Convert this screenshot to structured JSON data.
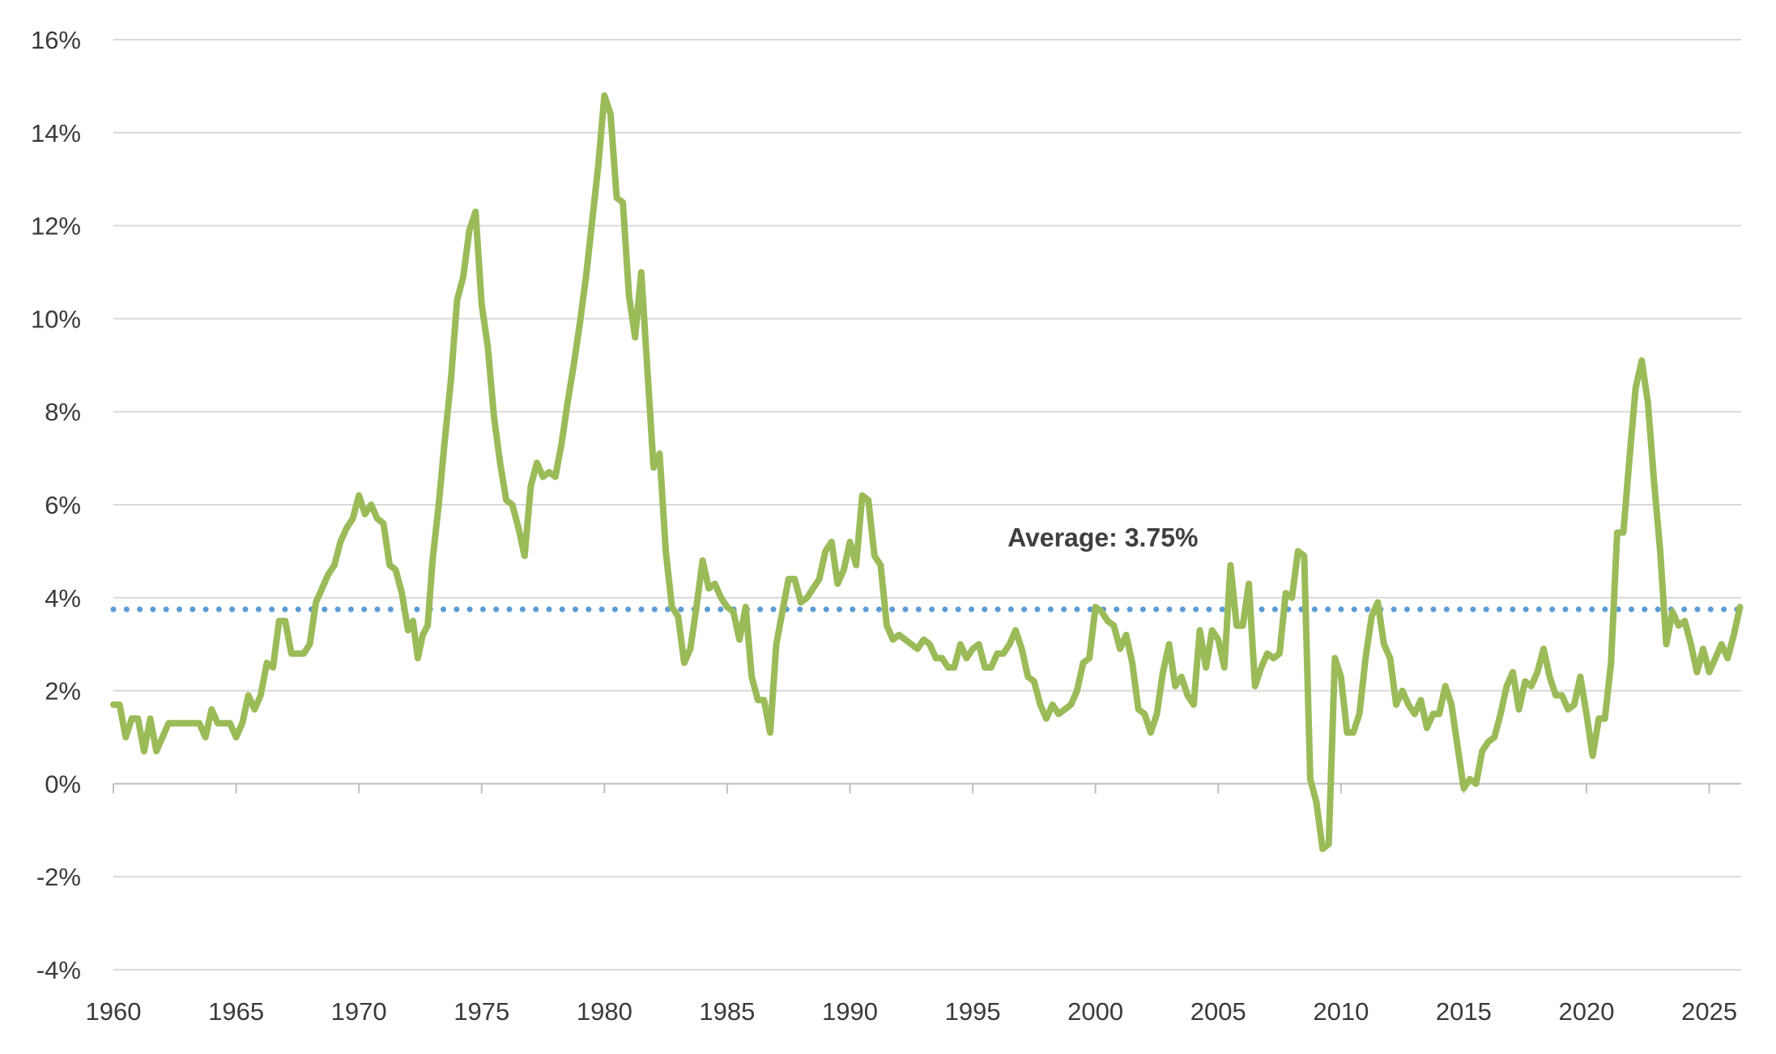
{
  "chart_data": {
    "type": "line",
    "title": "",
    "xlabel": "",
    "ylabel": "",
    "xlim": [
      1960,
      2026.3
    ],
    "ylim": [
      -4,
      16
    ],
    "grid": true,
    "x_ticks": [
      1960,
      1965,
      1970,
      1975,
      1980,
      1985,
      1990,
      1995,
      2000,
      2005,
      2010,
      2015,
      2020,
      2025
    ],
    "x_tick_labels": [
      "1960",
      "1965",
      "1970",
      "1975",
      "1980",
      "1985",
      "1990",
      "1995",
      "2000",
      "2005",
      "2010",
      "2015",
      "2020",
      "2025"
    ],
    "y_ticks": [
      -4,
      -2,
      0,
      2,
      4,
      6,
      8,
      10,
      12,
      14,
      16
    ],
    "y_tick_labels": [
      "-4%",
      "-2%",
      "0%",
      "2%",
      "4%",
      "6%",
      "8%",
      "10%",
      "12%",
      "14%",
      "16%"
    ],
    "series": [
      {
        "color": "#9bbb59",
        "points": [
          [
            1960.0,
            1.7
          ],
          [
            1960.25,
            1.7
          ],
          [
            1960.5,
            1.0
          ],
          [
            1960.75,
            1.4
          ],
          [
            1961.0,
            1.4
          ],
          [
            1961.25,
            0.7
          ],
          [
            1961.5,
            1.4
          ],
          [
            1961.75,
            0.7
          ],
          [
            1962.0,
            1.0
          ],
          [
            1962.25,
            1.3
          ],
          [
            1962.5,
            1.3
          ],
          [
            1963.0,
            1.3
          ],
          [
            1963.5,
            1.3
          ],
          [
            1963.75,
            1.0
          ],
          [
            1964.0,
            1.6
          ],
          [
            1964.25,
            1.3
          ],
          [
            1964.75,
            1.3
          ],
          [
            1965.0,
            1.0
          ],
          [
            1965.25,
            1.3
          ],
          [
            1965.5,
            1.9
          ],
          [
            1965.75,
            1.6
          ],
          [
            1966.0,
            1.9
          ],
          [
            1966.25,
            2.6
          ],
          [
            1966.5,
            2.5
          ],
          [
            1966.75,
            3.5
          ],
          [
            1967.0,
            3.5
          ],
          [
            1967.25,
            2.8
          ],
          [
            1967.75,
            2.8
          ],
          [
            1968.0,
            3.0
          ],
          [
            1968.25,
            3.9
          ],
          [
            1968.5,
            4.2
          ],
          [
            1968.75,
            4.5
          ],
          [
            1969.0,
            4.7
          ],
          [
            1969.25,
            5.2
          ],
          [
            1969.5,
            5.5
          ],
          [
            1969.75,
            5.7
          ],
          [
            1970.0,
            6.2
          ],
          [
            1970.25,
            5.8
          ],
          [
            1970.5,
            6.0
          ],
          [
            1970.75,
            5.7
          ],
          [
            1971.0,
            5.6
          ],
          [
            1971.25,
            4.7
          ],
          [
            1971.5,
            4.6
          ],
          [
            1971.75,
            4.1
          ],
          [
            1972.0,
            3.3
          ],
          [
            1972.2,
            3.5
          ],
          [
            1972.4,
            2.7
          ],
          [
            1972.6,
            3.2
          ],
          [
            1972.8,
            3.4
          ],
          [
            1973.0,
            4.8
          ],
          [
            1973.25,
            6.0
          ],
          [
            1973.5,
            7.4
          ],
          [
            1973.75,
            8.7
          ],
          [
            1974.0,
            10.4
          ],
          [
            1974.25,
            10.9
          ],
          [
            1974.5,
            11.9
          ],
          [
            1974.75,
            12.3
          ],
          [
            1975.0,
            10.3
          ],
          [
            1975.25,
            9.4
          ],
          [
            1975.5,
            7.9
          ],
          [
            1975.75,
            6.9
          ],
          [
            1976.0,
            6.1
          ],
          [
            1976.25,
            6.0
          ],
          [
            1976.5,
            5.5
          ],
          [
            1976.75,
            4.9
          ],
          [
            1977.0,
            6.4
          ],
          [
            1977.25,
            6.9
          ],
          [
            1977.5,
            6.6
          ],
          [
            1977.75,
            6.7
          ],
          [
            1978.0,
            6.6
          ],
          [
            1978.25,
            7.3
          ],
          [
            1978.5,
            8.2
          ],
          [
            1978.75,
            9.0
          ],
          [
            1979.0,
            9.9
          ],
          [
            1979.25,
            10.9
          ],
          [
            1979.5,
            12.1
          ],
          [
            1979.75,
            13.3
          ],
          [
            1980.0,
            14.8
          ],
          [
            1980.25,
            14.4
          ],
          [
            1980.5,
            12.6
          ],
          [
            1980.75,
            12.5
          ],
          [
            1981.0,
            10.5
          ],
          [
            1981.25,
            9.6
          ],
          [
            1981.5,
            11.0
          ],
          [
            1981.75,
            8.9
          ],
          [
            1982.0,
            6.8
          ],
          [
            1982.25,
            7.1
          ],
          [
            1982.5,
            5.0
          ],
          [
            1982.75,
            3.8
          ],
          [
            1983.0,
            3.6
          ],
          [
            1983.25,
            2.6
          ],
          [
            1983.5,
            2.9
          ],
          [
            1983.75,
            3.8
          ],
          [
            1984.0,
            4.8
          ],
          [
            1984.25,
            4.2
          ],
          [
            1984.5,
            4.3
          ],
          [
            1984.75,
            4.0
          ],
          [
            1985.0,
            3.8
          ],
          [
            1985.25,
            3.7
          ],
          [
            1985.5,
            3.1
          ],
          [
            1985.75,
            3.8
          ],
          [
            1986.0,
            2.3
          ],
          [
            1986.25,
            1.8
          ],
          [
            1986.5,
            1.8
          ],
          [
            1986.75,
            1.1
          ],
          [
            1987.0,
            3.0
          ],
          [
            1987.25,
            3.7
          ],
          [
            1987.5,
            4.4
          ],
          [
            1987.75,
            4.4
          ],
          [
            1988.0,
            3.9
          ],
          [
            1988.25,
            4.0
          ],
          [
            1988.5,
            4.2
          ],
          [
            1988.75,
            4.4
          ],
          [
            1989.0,
            5.0
          ],
          [
            1989.25,
            5.2
          ],
          [
            1989.5,
            4.3
          ],
          [
            1989.75,
            4.6
          ],
          [
            1990.0,
            5.2
          ],
          [
            1990.25,
            4.7
          ],
          [
            1990.5,
            6.2
          ],
          [
            1990.75,
            6.1
          ],
          [
            1991.0,
            4.9
          ],
          [
            1991.25,
            4.7
          ],
          [
            1991.5,
            3.4
          ],
          [
            1991.75,
            3.1
          ],
          [
            1992.0,
            3.2
          ],
          [
            1992.5,
            3.0
          ],
          [
            1992.75,
            2.9
          ],
          [
            1993.0,
            3.1
          ],
          [
            1993.25,
            3.0
          ],
          [
            1993.5,
            2.7
          ],
          [
            1993.75,
            2.7
          ],
          [
            1994.0,
            2.5
          ],
          [
            1994.25,
            2.5
          ],
          [
            1994.5,
            3.0
          ],
          [
            1994.75,
            2.7
          ],
          [
            1995.0,
            2.9
          ],
          [
            1995.25,
            3.0
          ],
          [
            1995.5,
            2.5
          ],
          [
            1995.75,
            2.5
          ],
          [
            1996.0,
            2.8
          ],
          [
            1996.25,
            2.8
          ],
          [
            1996.5,
            3.0
          ],
          [
            1996.75,
            3.3
          ],
          [
            1997.0,
            2.9
          ],
          [
            1997.25,
            2.3
          ],
          [
            1997.5,
            2.2
          ],
          [
            1997.75,
            1.7
          ],
          [
            1998.0,
            1.4
          ],
          [
            1998.25,
            1.7
          ],
          [
            1998.5,
            1.5
          ],
          [
            1998.75,
            1.6
          ],
          [
            1999.0,
            1.7
          ],
          [
            1999.25,
            2.0
          ],
          [
            1999.5,
            2.6
          ],
          [
            1999.75,
            2.7
          ],
          [
            2000.0,
            3.8
          ],
          [
            2000.25,
            3.7
          ],
          [
            2000.5,
            3.5
          ],
          [
            2000.75,
            3.4
          ],
          [
            2001.0,
            2.9
          ],
          [
            2001.25,
            3.2
          ],
          [
            2001.5,
            2.6
          ],
          [
            2001.75,
            1.6
          ],
          [
            2002.0,
            1.5
          ],
          [
            2002.25,
            1.1
          ],
          [
            2002.5,
            1.5
          ],
          [
            2002.75,
            2.4
          ],
          [
            2003.0,
            3.0
          ],
          [
            2003.25,
            2.1
          ],
          [
            2003.5,
            2.3
          ],
          [
            2003.75,
            1.9
          ],
          [
            2004.0,
            1.7
          ],
          [
            2004.25,
            3.3
          ],
          [
            2004.5,
            2.5
          ],
          [
            2004.75,
            3.3
          ],
          [
            2005.0,
            3.1
          ],
          [
            2005.25,
            2.5
          ],
          [
            2005.5,
            4.7
          ],
          [
            2005.75,
            3.4
          ],
          [
            2006.0,
            3.4
          ],
          [
            2006.25,
            4.3
          ],
          [
            2006.5,
            2.1
          ],
          [
            2006.75,
            2.5
          ],
          [
            2007.0,
            2.8
          ],
          [
            2007.25,
            2.7
          ],
          [
            2007.5,
            2.8
          ],
          [
            2007.75,
            4.1
          ],
          [
            2008.0,
            4.0
          ],
          [
            2008.25,
            5.0
          ],
          [
            2008.5,
            4.9
          ],
          [
            2008.75,
            0.1
          ],
          [
            2009.0,
            -0.4
          ],
          [
            2009.25,
            -1.4
          ],
          [
            2009.5,
            -1.3
          ],
          [
            2009.75,
            2.7
          ],
          [
            2010.0,
            2.3
          ],
          [
            2010.25,
            1.1
          ],
          [
            2010.5,
            1.1
          ],
          [
            2010.75,
            1.5
          ],
          [
            2011.0,
            2.7
          ],
          [
            2011.25,
            3.6
          ],
          [
            2011.5,
            3.9
          ],
          [
            2011.75,
            3.0
          ],
          [
            2012.0,
            2.7
          ],
          [
            2012.25,
            1.7
          ],
          [
            2012.5,
            2.0
          ],
          [
            2012.75,
            1.7
          ],
          [
            2013.0,
            1.5
          ],
          [
            2013.25,
            1.8
          ],
          [
            2013.5,
            1.2
          ],
          [
            2013.75,
            1.5
          ],
          [
            2014.0,
            1.5
          ],
          [
            2014.25,
            2.1
          ],
          [
            2014.5,
            1.7
          ],
          [
            2014.75,
            0.8
          ],
          [
            2015.0,
            -0.1
          ],
          [
            2015.25,
            0.1
          ],
          [
            2015.5,
            0.0
          ],
          [
            2015.75,
            0.7
          ],
          [
            2016.0,
            0.9
          ],
          [
            2016.25,
            1.0
          ],
          [
            2016.5,
            1.5
          ],
          [
            2016.75,
            2.1
          ],
          [
            2017.0,
            2.4
          ],
          [
            2017.25,
            1.6
          ],
          [
            2017.5,
            2.2
          ],
          [
            2017.75,
            2.1
          ],
          [
            2018.0,
            2.4
          ],
          [
            2018.25,
            2.9
          ],
          [
            2018.5,
            2.3
          ],
          [
            2018.75,
            1.9
          ],
          [
            2019.0,
            1.9
          ],
          [
            2019.25,
            1.6
          ],
          [
            2019.5,
            1.7
          ],
          [
            2019.75,
            2.3
          ],
          [
            2020.0,
            1.5
          ],
          [
            2020.25,
            0.6
          ],
          [
            2020.5,
            1.4
          ],
          [
            2020.75,
            1.4
          ],
          [
            2021.0,
            2.6
          ],
          [
            2021.25,
            5.4
          ],
          [
            2021.5,
            5.4
          ],
          [
            2021.75,
            7.0
          ],
          [
            2022.0,
            8.5
          ],
          [
            2022.25,
            9.1
          ],
          [
            2022.5,
            8.2
          ],
          [
            2022.75,
            6.5
          ],
          [
            2023.0,
            5.0
          ],
          [
            2023.25,
            3.0
          ],
          [
            2023.5,
            3.7
          ],
          [
            2023.75,
            3.4
          ],
          [
            2024.0,
            3.5
          ],
          [
            2024.25,
            3.0
          ],
          [
            2024.5,
            2.4
          ],
          [
            2024.75,
            2.9
          ],
          [
            2025.0,
            2.4
          ],
          [
            2025.25,
            2.7
          ],
          [
            2025.5,
            3.0
          ],
          [
            2025.75,
            2.7
          ],
          [
            2026.0,
            3.2
          ],
          [
            2026.25,
            3.8
          ]
        ]
      }
    ],
    "reference_line": {
      "value": 3.75,
      "style": "dotted",
      "color": "#5b9bd5"
    },
    "annotation": {
      "text": "Average: 3.75%",
      "x": 2000.3,
      "y": 5.1
    },
    "colors": {
      "line": "#9bbb59",
      "average": "#5b9bd5",
      "grid": "#d9d9d9",
      "axis": "#bfbfbf"
    }
  }
}
